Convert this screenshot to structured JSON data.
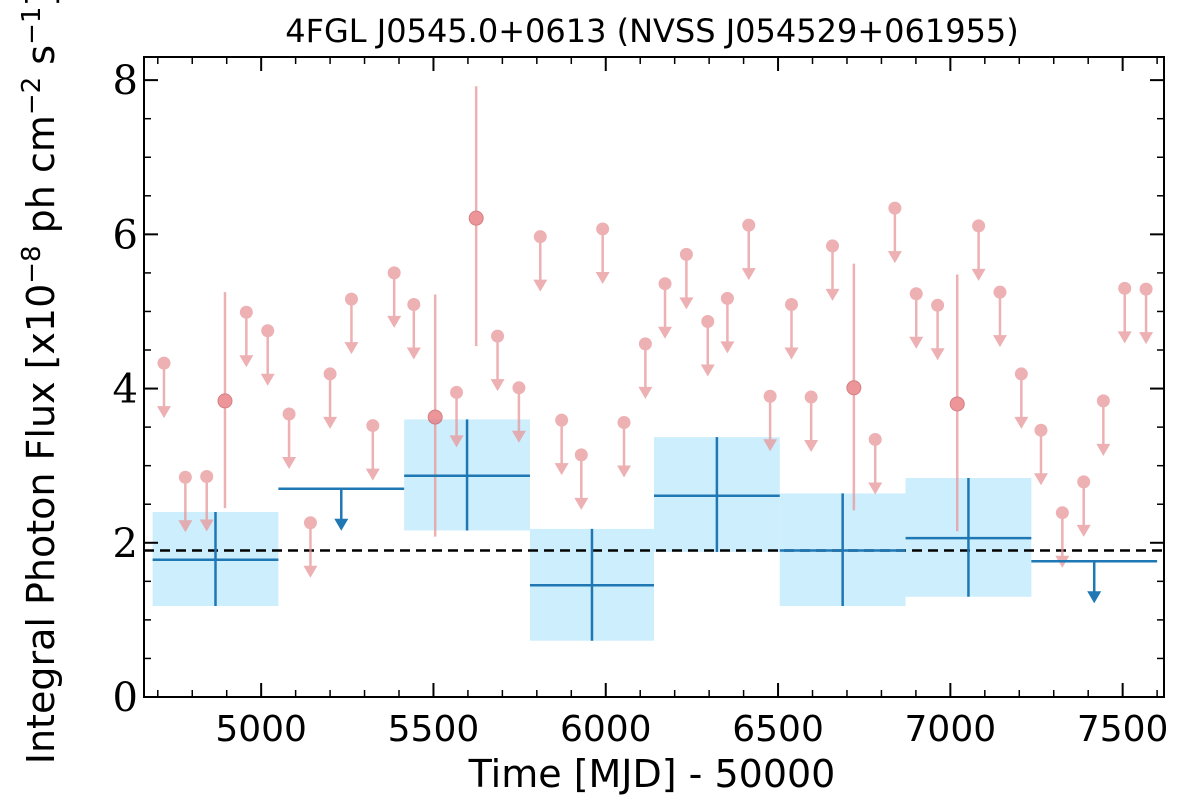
{
  "chart_data": {
    "type": "scatter",
    "title": "4FGL J0545.0+0613 (NVSS J054529+061955)",
    "xlabel": "Time [MJD] - 50000",
    "ylabel": "Integral Photon Flux [x10",
    "ylabel_exp1": "−8",
    "ylabel_mid": " ph cm",
    "ylabel_exp2": "−2",
    "ylabel_mid2": " s",
    "ylabel_exp3": "−1",
    "ylabel_end": "]",
    "xlim": [
      4660,
      7620
    ],
    "ylim": [
      0,
      8.3
    ],
    "xticks": [
      5000,
      5500,
      6000,
      6500,
      7000,
      7500
    ],
    "yticks": [
      0,
      2,
      4,
      6,
      8
    ],
    "average_flux": 1.9,
    "colors": {
      "fine": "#e8969a",
      "coarse": "#1f77b4",
      "box": "#cdeefc",
      "average": "#000000"
    },
    "coarse_bins": [
      {
        "x0": 4685,
        "x1": 5050,
        "y": 1.78,
        "ylo": 1.18,
        "yhi": 2.4,
        "ul": false
      },
      {
        "x0": 5050,
        "x1": 5415,
        "y": 2.7,
        "ul": true
      },
      {
        "x0": 5415,
        "x1": 5780,
        "y": 2.87,
        "ylo": 2.16,
        "yhi": 3.6,
        "ul": false
      },
      {
        "x0": 5780,
        "x1": 6140,
        "y": 1.45,
        "ylo": 0.73,
        "yhi": 2.18,
        "ul": false
      },
      {
        "x0": 6140,
        "x1": 6505,
        "y": 2.61,
        "ylo": 1.88,
        "yhi": 3.37,
        "ul": false
      },
      {
        "x0": 6505,
        "x1": 6870,
        "y": 1.9,
        "ylo": 1.18,
        "yhi": 2.64,
        "ul": false
      },
      {
        "x0": 6870,
        "x1": 7235,
        "y": 2.06,
        "ylo": 1.3,
        "yhi": 2.84,
        "ul": false
      },
      {
        "x0": 7235,
        "x1": 7600,
        "y": 1.76,
        "ul": true
      }
    ],
    "fine_points": [
      {
        "x": 4718,
        "y": 4.33,
        "ul": true
      },
      {
        "x": 4780,
        "y": 2.85,
        "ul": true
      },
      {
        "x": 4842,
        "y": 2.86,
        "ul": true
      },
      {
        "x": 4895,
        "y": 3.84,
        "ylo": 2.45,
        "yhi": 5.25,
        "ul": false
      },
      {
        "x": 4957,
        "y": 4.99,
        "ul": true
      },
      {
        "x": 5019,
        "y": 4.75,
        "ul": true
      },
      {
        "x": 5081,
        "y": 3.67,
        "ul": true
      },
      {
        "x": 5143,
        "y": 2.26,
        "ul": true
      },
      {
        "x": 5200,
        "y": 4.19,
        "ul": true
      },
      {
        "x": 5262,
        "y": 5.16,
        "ul": true
      },
      {
        "x": 5324,
        "y": 3.52,
        "ul": true
      },
      {
        "x": 5386,
        "y": 5.5,
        "ul": true
      },
      {
        "x": 5443,
        "y": 5.09,
        "ul": true
      },
      {
        "x": 5505,
        "y": 3.63,
        "ylo": 2.08,
        "yhi": 5.22,
        "ul": false
      },
      {
        "x": 5567,
        "y": 3.95,
        "ul": true
      },
      {
        "x": 5624,
        "y": 6.21,
        "ylo": 4.55,
        "yhi": 7.92,
        "ul": false
      },
      {
        "x": 5686,
        "y": 4.68,
        "ul": true
      },
      {
        "x": 5748,
        "y": 4.01,
        "ul": true
      },
      {
        "x": 5810,
        "y": 5.97,
        "ul": true
      },
      {
        "x": 5872,
        "y": 3.59,
        "ul": true
      },
      {
        "x": 5929,
        "y": 3.14,
        "ul": true
      },
      {
        "x": 5991,
        "y": 6.07,
        "ul": true
      },
      {
        "x": 6053,
        "y": 3.56,
        "ul": true
      },
      {
        "x": 6115,
        "y": 4.58,
        "ul": true
      },
      {
        "x": 6172,
        "y": 5.36,
        "ul": true
      },
      {
        "x": 6234,
        "y": 5.74,
        "ul": true
      },
      {
        "x": 6296,
        "y": 4.87,
        "ul": true
      },
      {
        "x": 6353,
        "y": 5.17,
        "ul": true
      },
      {
        "x": 6415,
        "y": 6.12,
        "ul": true
      },
      {
        "x": 6477,
        "y": 3.9,
        "ul": true
      },
      {
        "x": 6539,
        "y": 5.09,
        "ul": true
      },
      {
        "x": 6596,
        "y": 3.89,
        "ul": true
      },
      {
        "x": 6658,
        "y": 5.85,
        "ul": true
      },
      {
        "x": 6720,
        "y": 4.01,
        "ylo": 2.42,
        "yhi": 5.62,
        "ul": false
      },
      {
        "x": 6782,
        "y": 3.34,
        "ul": true
      },
      {
        "x": 6839,
        "y": 6.34,
        "ul": true
      },
      {
        "x": 6901,
        "y": 5.23,
        "ul": true
      },
      {
        "x": 6963,
        "y": 5.08,
        "ul": true
      },
      {
        "x": 7020,
        "y": 3.8,
        "ylo": 2.15,
        "yhi": 5.48,
        "ul": false
      },
      {
        "x": 7082,
        "y": 6.11,
        "ul": true
      },
      {
        "x": 7144,
        "y": 5.25,
        "ul": true
      },
      {
        "x": 7206,
        "y": 4.19,
        "ul": true
      },
      {
        "x": 7263,
        "y": 3.46,
        "ul": true
      },
      {
        "x": 7325,
        "y": 2.39,
        "ul": true
      },
      {
        "x": 7387,
        "y": 2.79,
        "ul": true
      },
      {
        "x": 7444,
        "y": 3.84,
        "ul": true
      },
      {
        "x": 7506,
        "y": 5.3,
        "ul": true
      },
      {
        "x": 7568,
        "y": 5.29,
        "ul": true
      }
    ]
  }
}
